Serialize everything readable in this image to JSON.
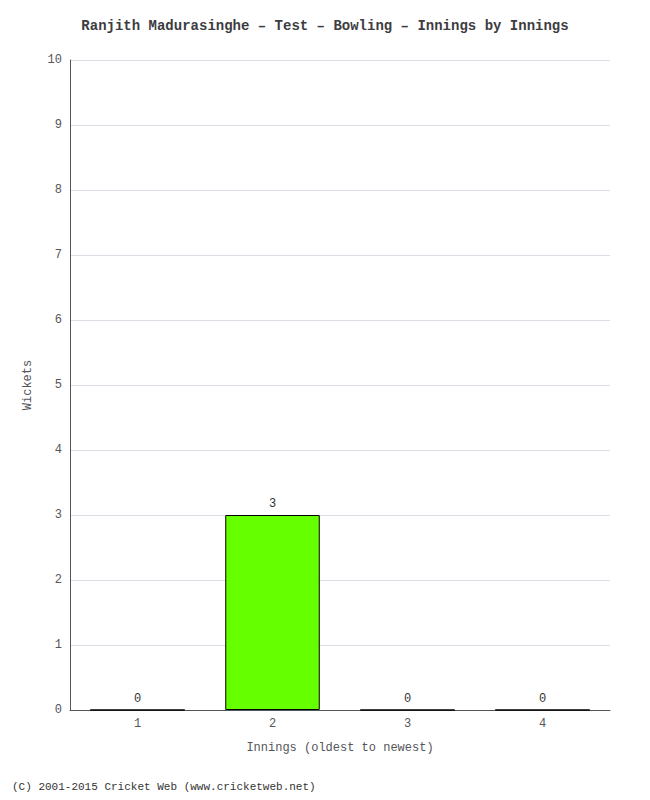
{
  "chart_data": {
    "type": "bar",
    "title": "Ranjith Madurasinghe – Test – Bowling – Innings by Innings",
    "x_label": "Innings (oldest to newest)",
    "y_label": "Wickets",
    "categories": [
      1,
      2,
      3,
      4
    ],
    "values": [
      0,
      3,
      0,
      0
    ],
    "color": "#66ff00",
    "ylim": [
      0,
      10
    ],
    "yticks": [
      0,
      1,
      2,
      3,
      4,
      5,
      6,
      7,
      8,
      9,
      10
    ],
    "grid": true,
    "data_labels": true,
    "annotations": [
      "(C) 2001-2015 Cricket Web (www.cricketweb.net)"
    ]
  }
}
